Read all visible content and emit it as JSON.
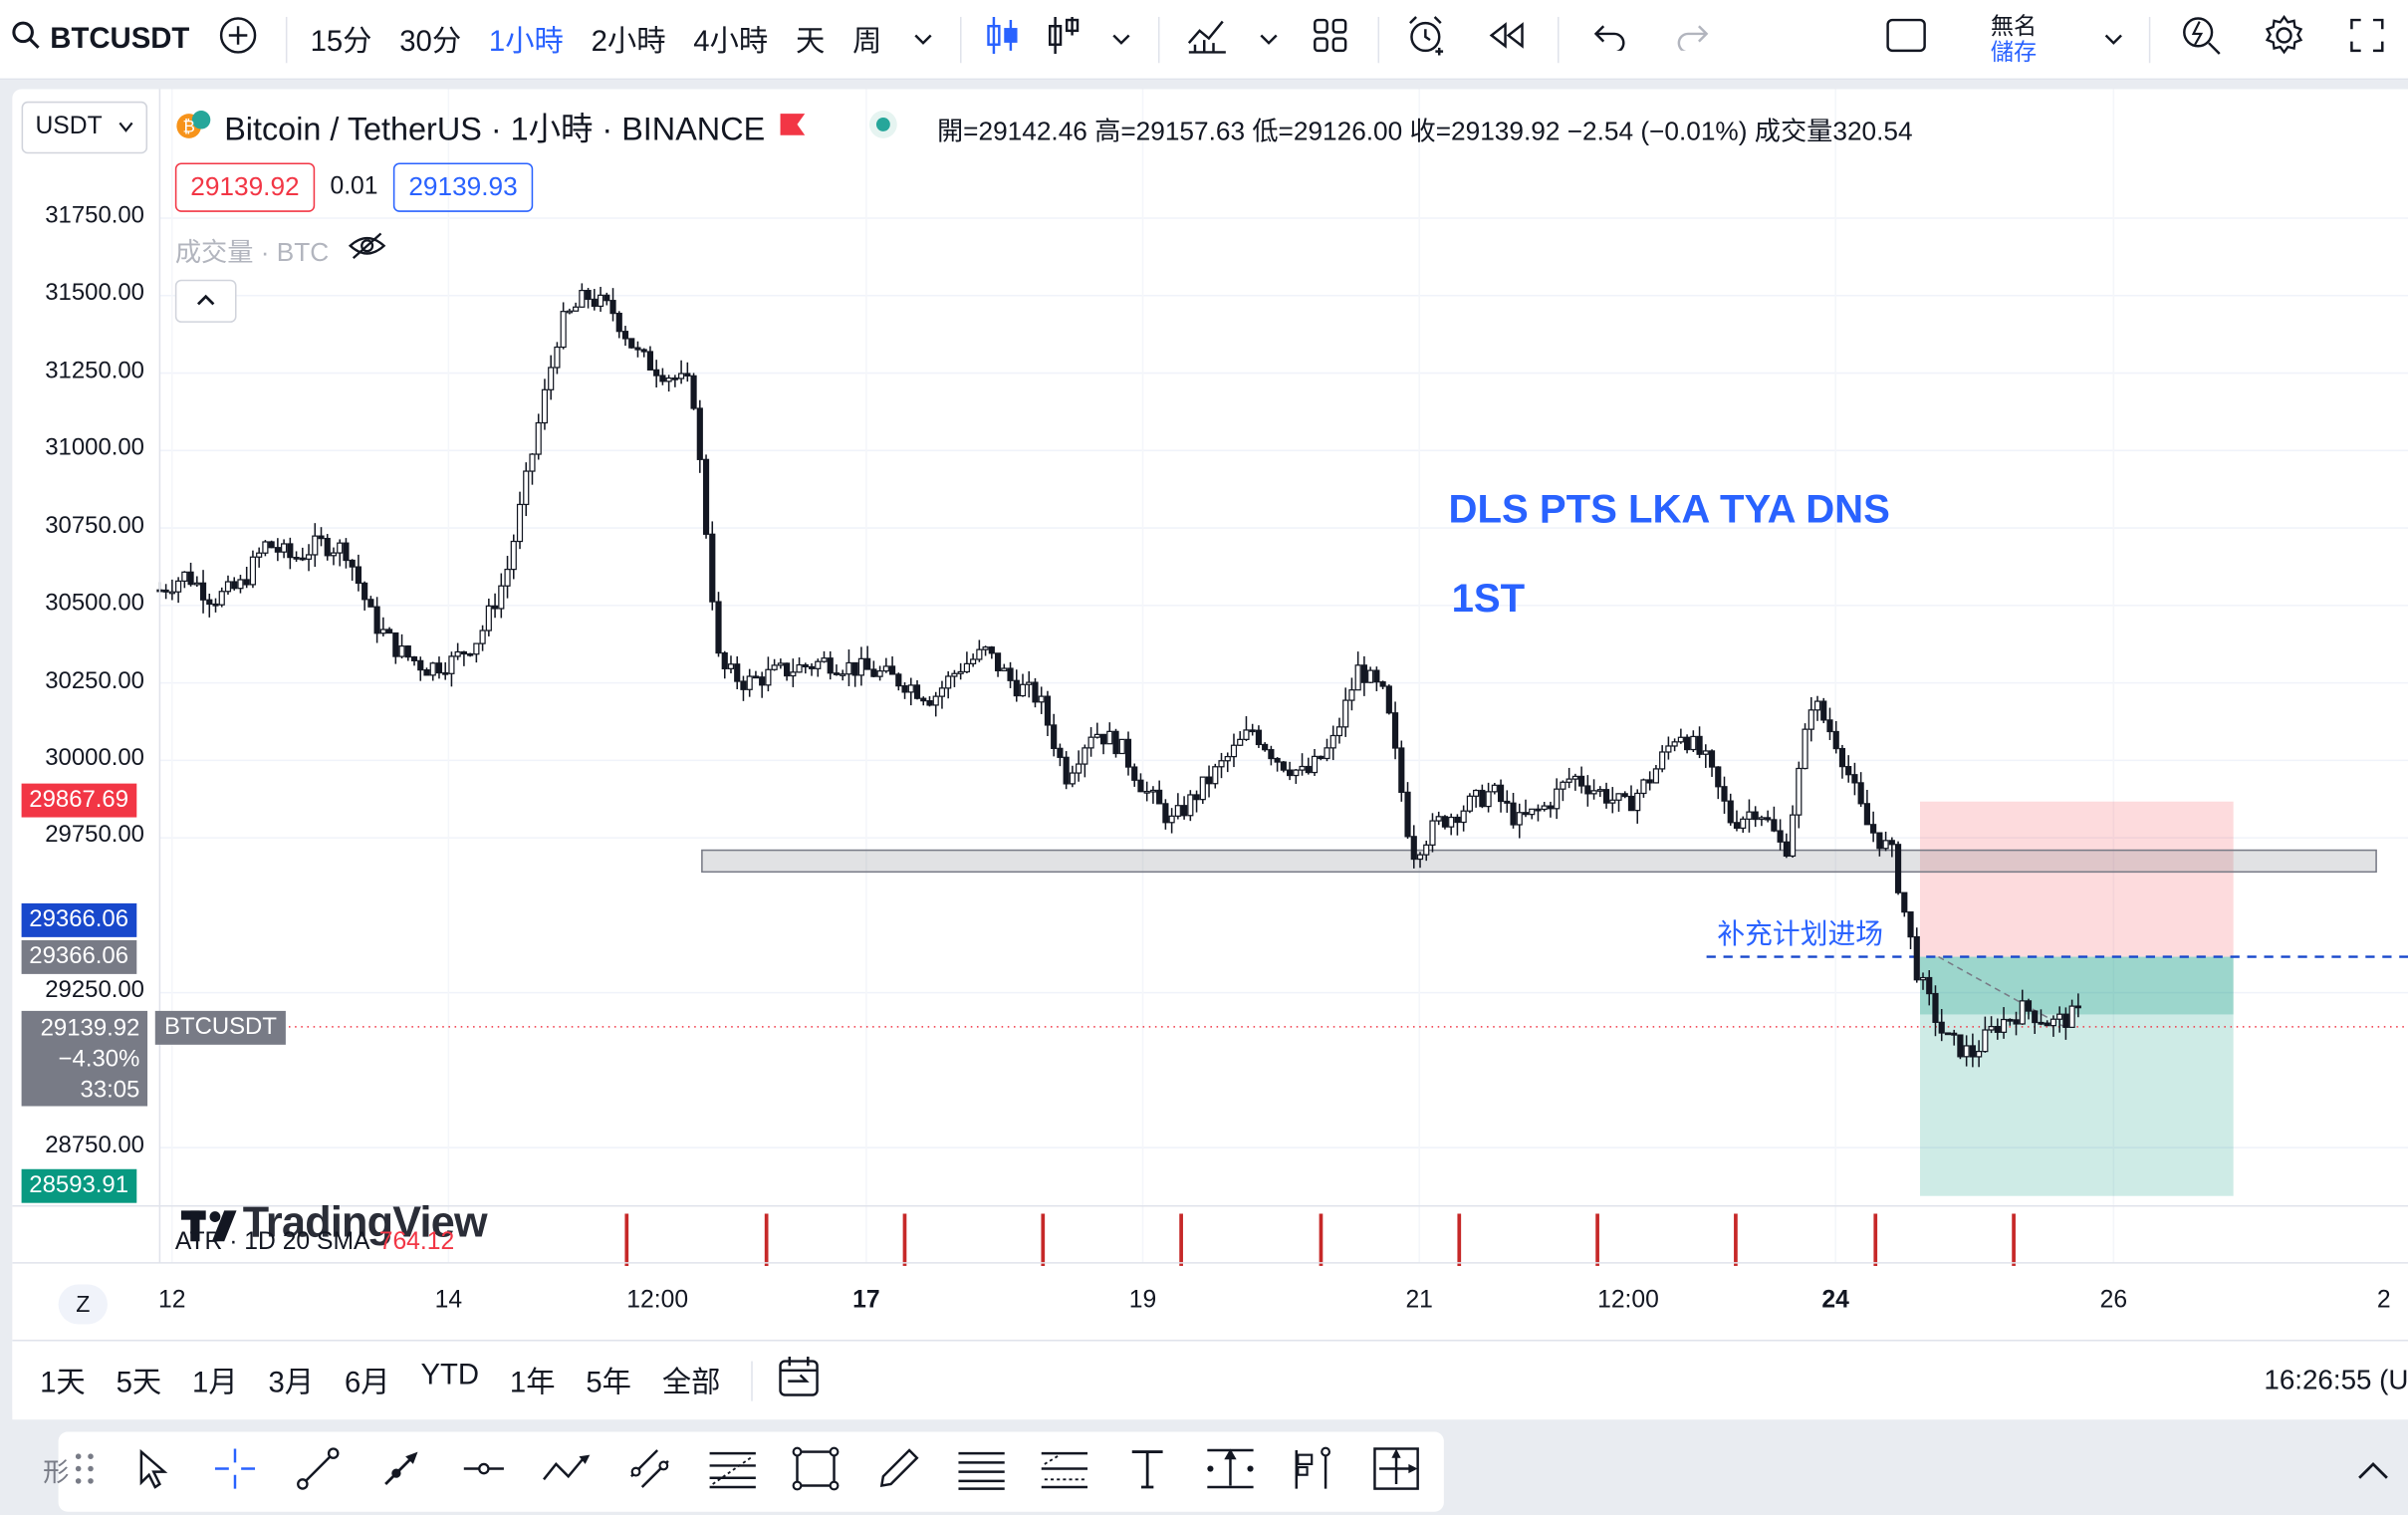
{
  "toolbar": {
    "symbol": "BTCUSDT",
    "intervals": [
      "15分",
      "30分",
      "1小時",
      "2小時",
      "4小時",
      "天",
      "周"
    ],
    "active_interval": "1小時",
    "layout_name_top": "無名",
    "layout_name_bottom": "儲存"
  },
  "header": {
    "currency": "USDT",
    "title": "Bitcoin / TetherUS · 1小時 · BINANCE",
    "ohlc": "開=29142.46 高=29157.63 低=29126.00 收=29139.92 −2.54 (−0.01%) 成交量320.54",
    "bid": "29139.92",
    "spread": "0.01",
    "ask": "29139.93",
    "volume_label": "成交量 · BTC"
  },
  "annotations": {
    "title_line1": "DLS PTS LKA TYA DNS",
    "title_line2": "1ST",
    "entry_note": "补充计划进场"
  },
  "price_labels": {
    "red": "29867.69",
    "blue": "29366.06",
    "gray": "29366.06",
    "current": "29139.92",
    "current_change": "−4.30%",
    "countdown": "33:05",
    "current_tag": "BTCUSDT",
    "green": "28593.91"
  },
  "indicator": {
    "label": "ATR · 1D 20 SMA",
    "value": "764.12",
    "watermark": "TradingView"
  },
  "time_axis": [
    "12",
    "14",
    "12:00",
    "17",
    "19",
    "21",
    "12:00",
    "24",
    "26",
    "2"
  ],
  "bottom": {
    "ranges": [
      "1天",
      "5天",
      "1月",
      "3月",
      "6月",
      "YTD",
      "1年",
      "5年",
      "全部"
    ],
    "clock": "16:26:55 (U"
  },
  "chart_data": {
    "type": "candlestick",
    "ylim": [
      28500,
      31900
    ],
    "y_ticks": [
      31750,
      31500,
      31250,
      31000,
      30750,
      30500,
      30250,
      30000,
      29750,
      29250,
      28750
    ],
    "close_path": [
      30550,
      30600,
      30520,
      30560,
      30700,
      30650,
      30700,
      30680,
      30450,
      30350,
      30300,
      30320,
      30400,
      30600,
      31000,
      31400,
      31500,
      31450,
      31300,
      31250,
      31200,
      30300,
      30250,
      30280,
      30300,
      30320,
      30300,
      30280,
      30250,
      30200,
      30300,
      30350,
      30250,
      30200,
      29950,
      30100,
      30050,
      29900,
      29800,
      29900,
      30000,
      30100,
      30000,
      29950,
      30050,
      30300,
      30200,
      29700,
      29800,
      29850,
      29900,
      29800,
      29850,
      29950,
      29900,
      29850,
      29950,
      30100,
      30000,
      29800,
      29850,
      29700,
      30200,
      30050,
      29800,
      29700,
      29300,
      29100,
      29050,
      29150,
      29200,
      29150,
      29180
    ],
    "support_zone": [
      29640,
      29710
    ],
    "entry_line": 29366,
    "stop_level": 29867,
    "target_level": 28594
  }
}
